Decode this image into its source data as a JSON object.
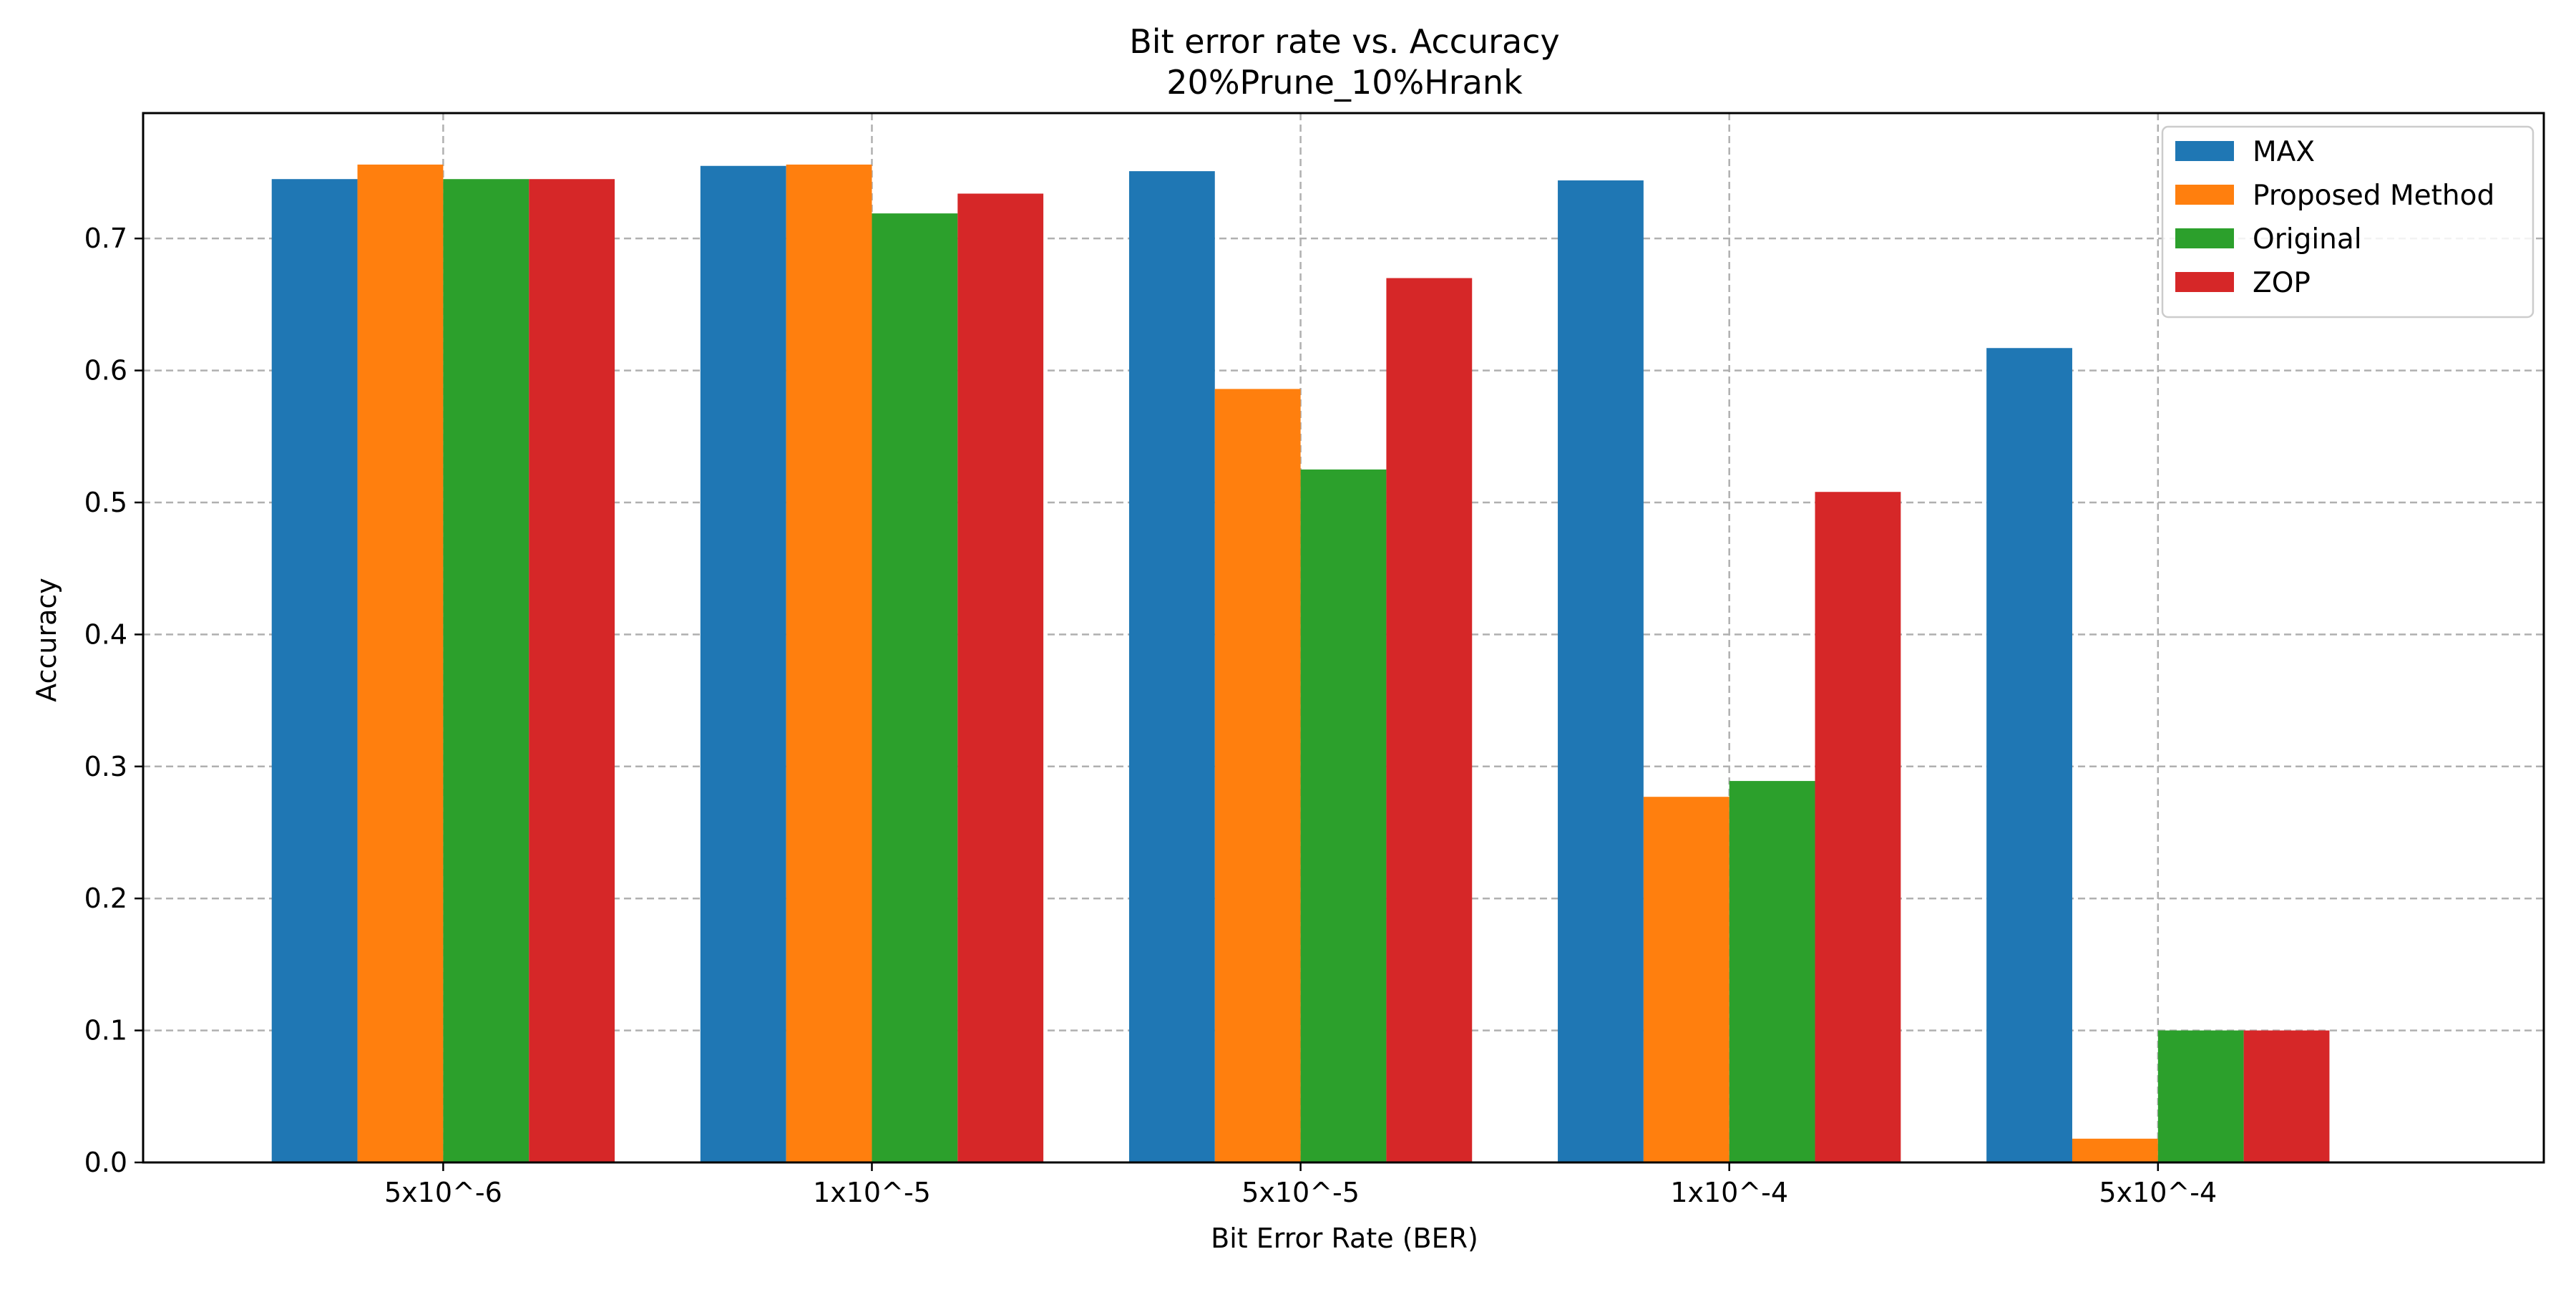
{
  "chart_data": {
    "type": "bar",
    "title": "Bit error rate vs. Accuracy",
    "subtitle": "20%Prune_10%Hrank",
    "xlabel": "Bit Error Rate (BER)",
    "ylabel": "Accuracy",
    "categories": [
      "5x10^-6",
      "1x10^-5",
      "5x10^-5",
      "1x10^-4",
      "5x10^-4"
    ],
    "ylim": [
      0,
      0.795
    ],
    "yticks": [
      0.0,
      0.1,
      0.2,
      0.3,
      0.4,
      0.5,
      0.6,
      0.7
    ],
    "ytick_labels": [
      "0.0",
      "0.1",
      "0.2",
      "0.3",
      "0.4",
      "0.5",
      "0.6",
      "0.7"
    ],
    "grid": true,
    "legend_position": "top-right",
    "series": [
      {
        "name": "MAX",
        "color": "#1f77b4",
        "values": [
          0.745,
          0.755,
          0.751,
          0.744,
          0.617
        ]
      },
      {
        "name": "Proposed Method",
        "color": "#ff7f0e",
        "values": [
          0.756,
          0.756,
          0.586,
          0.277,
          0.018
        ]
      },
      {
        "name": "Original",
        "color": "#2ca02c",
        "values": [
          0.745,
          0.719,
          0.525,
          0.289,
          0.1
        ]
      },
      {
        "name": "ZOP",
        "color": "#d62728",
        "values": [
          0.745,
          0.734,
          0.67,
          0.508,
          0.1
        ]
      }
    ]
  }
}
